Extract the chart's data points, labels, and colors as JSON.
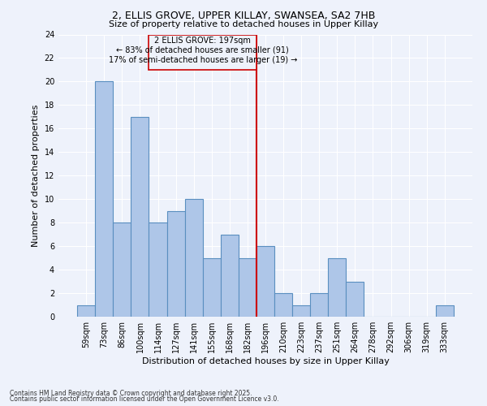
{
  "title1": "2, ELLIS GROVE, UPPER KILLAY, SWANSEA, SA2 7HB",
  "title2": "Size of property relative to detached houses in Upper Killay",
  "xlabel": "Distribution of detached houses by size in Upper Killay",
  "ylabel": "Number of detached properties",
  "categories": [
    "59sqm",
    "73sqm",
    "86sqm",
    "100sqm",
    "114sqm",
    "127sqm",
    "141sqm",
    "155sqm",
    "168sqm",
    "182sqm",
    "196sqm",
    "210sqm",
    "223sqm",
    "237sqm",
    "251sqm",
    "264sqm",
    "278sqm",
    "292sqm",
    "306sqm",
    "319sqm",
    "333sqm"
  ],
  "values": [
    1,
    20,
    8,
    17,
    8,
    9,
    10,
    5,
    7,
    5,
    6,
    2,
    1,
    2,
    5,
    3,
    0,
    0,
    0,
    0,
    1
  ],
  "bar_color": "#aec6e8",
  "bar_edge_color": "#5a8fc0",
  "vline_index": 10,
  "property_line_label": "2 ELLIS GROVE: 197sqm",
  "annotation_line1": "← 83% of detached houses are smaller (91)",
  "annotation_line2": "17% of semi-detached houses are larger (19) →",
  "annotation_box_color": "#cc0000",
  "vline_color": "#cc0000",
  "ylim": [
    0,
    24
  ],
  "yticks": [
    0,
    2,
    4,
    6,
    8,
    10,
    12,
    14,
    16,
    18,
    20,
    22,
    24
  ],
  "bg_color": "#eef2fb",
  "footnote1": "Contains HM Land Registry data © Crown copyright and database right 2025.",
  "footnote2": "Contains public sector information licensed under the Open Government Licence v3.0."
}
